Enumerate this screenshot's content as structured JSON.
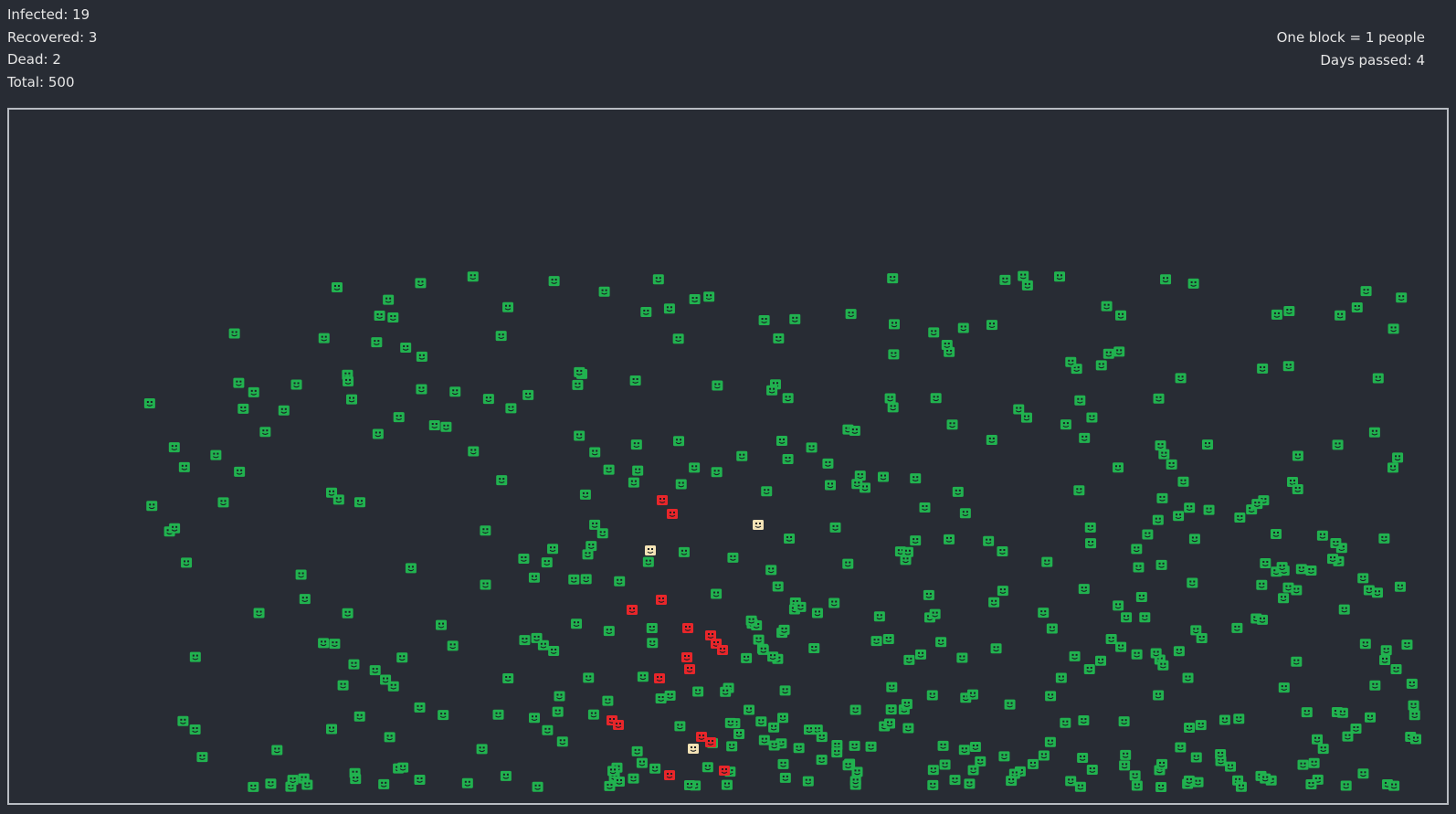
{
  "stats": {
    "infected_label": "Infected: 19",
    "recovered_label": "Recovered: 3",
    "dead_label": "Dead: 2",
    "total_label": "Total: 500"
  },
  "info": {
    "scale_label": "One block = 1 people",
    "days_label": "Days passed: 4"
  },
  "colors": {
    "background": "#282c34",
    "healthy": "#21b24f",
    "infected": "#e8262a",
    "recovered": "#f4e3b6",
    "border": "#b8bcc2"
  },
  "icons": {
    "person": "smiley-face-block-icon"
  }
}
